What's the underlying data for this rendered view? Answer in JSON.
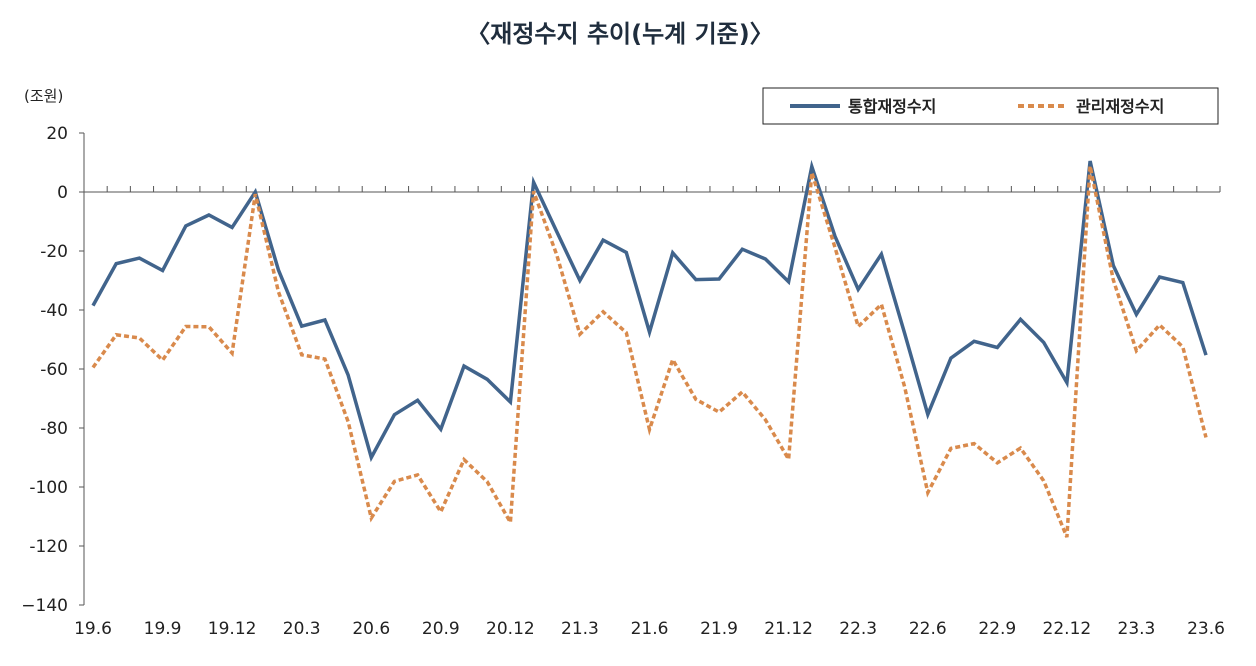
{
  "chart_data": {
    "type": "line",
    "title": "〈재정수지 추이(누계 기준)〉",
    "unit_label": "(조원)",
    "ylim": [
      -140,
      20
    ],
    "yticks": [
      20,
      0,
      -20,
      -40,
      -60,
      -80,
      -100,
      -120,
      -140
    ],
    "ytick_labels": [
      "20",
      "0",
      "-20",
      "-40",
      "-60",
      "-80",
      "-100",
      "-120",
      "−140"
    ],
    "x": [
      "19.6",
      "19.7",
      "19.8",
      "19.9",
      "19.10",
      "19.11",
      "19.12",
      "20.1",
      "20.2",
      "20.3",
      "20.4",
      "20.5",
      "20.6",
      "20.7",
      "20.8",
      "20.9",
      "20.10",
      "20.11",
      "20.12",
      "21.1",
      "21.2",
      "21.3",
      "21.4",
      "21.5",
      "21.6",
      "21.7",
      "21.8",
      "21.9",
      "21.10",
      "21.11",
      "21.12",
      "22.1",
      "22.2",
      "22.3",
      "22.4",
      "22.5",
      "22.6",
      "22.7",
      "22.8",
      "22.9",
      "22.10",
      "22.11",
      "22.12",
      "23.1",
      "23.2",
      "23.3",
      "23.4",
      "23.5",
      "23.6"
    ],
    "xtick_labels": [
      "19.6",
      "19.9",
      "19.12",
      "20.3",
      "20.6",
      "20.9",
      "20.12",
      "21.3",
      "21.6",
      "21.9",
      "21.12",
      "22.3",
      "22.6",
      "22.9",
      "22.12",
      "23.3",
      "23.6"
    ],
    "series": [
      {
        "name": "통합재정수지",
        "color": "#41648c",
        "style": "solid",
        "values": [
          -38.5,
          -24.3,
          -22.4,
          -26.6,
          -11.5,
          -7.8,
          -12.0,
          0.0,
          -26.5,
          -45.5,
          -43.4,
          -62.0,
          -90.0,
          -75.5,
          -70.6,
          -80.4,
          -59.0,
          -63.5,
          -71.2,
          3.3,
          -13.5,
          -30.0,
          -16.3,
          -20.5,
          -47.5,
          -20.6,
          -29.7,
          -29.5,
          -19.4,
          -22.7,
          -30.4,
          8.6,
          -15.0,
          -33.0,
          -21.1,
          -47.9,
          -75.4,
          -56.3,
          -50.6,
          -52.7,
          -43.2,
          -51.0,
          -64.6,
          10.5,
          -24.9,
          -41.5,
          -28.8,
          -30.7,
          -55.3
        ]
      },
      {
        "name": "관리재정수지",
        "color": "#d98a4c",
        "style": "dashed",
        "values": [
          -59.5,
          -48.4,
          -49.5,
          -57.0,
          -45.6,
          -45.7,
          -54.6,
          -0.7,
          -33.9,
          -55.2,
          -56.6,
          -77.8,
          -110.5,
          -98.1,
          -95.9,
          -108.4,
          -90.7,
          -98.2,
          -112.0,
          0.2,
          -21.4,
          -48.2,
          -40.6,
          -47.7,
          -80.5,
          -56.8,
          -70.3,
          -74.6,
          -67.8,
          -77.2,
          -90.6,
          6.6,
          -18.8,
          -45.6,
          -38.1,
          -66.0,
          -101.9,
          -86.9,
          -85.3,
          -91.8,
          -86.8,
          -97.9,
          -117.0,
          8.8,
          -29.8,
          -53.8,
          -45.1,
          -52.5,
          -83.2
        ]
      }
    ],
    "legend_position": "top-right",
    "grid": false
  }
}
